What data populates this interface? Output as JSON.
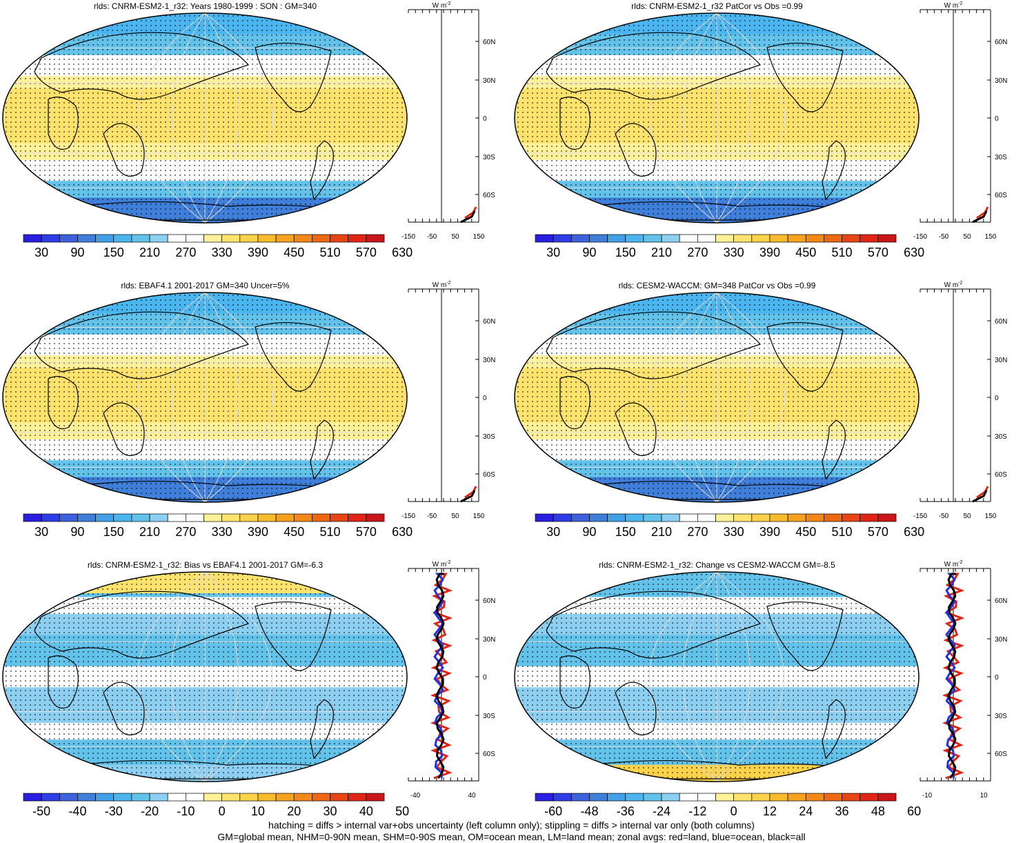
{
  "panels": [
    {
      "title": "rlds: CNRM-ESM2-1_r32: Years 1980-1999 : SON : GM=340",
      "colorbar_labels": [
        "30",
        "90",
        "150",
        "210",
        "270",
        "330",
        "390",
        "450",
        "510",
        "570",
        "630"
      ],
      "zonal_ticks": [
        "-150",
        "-50",
        "50",
        "150"
      ],
      "type": "mean"
    },
    {
      "title": "rlds: CNRM-ESM2-1_r32 PatCor vs Obs =0.99",
      "colorbar_labels": [
        "30",
        "90",
        "150",
        "210",
        "270",
        "330",
        "390",
        "450",
        "510",
        "570",
        "630"
      ],
      "zonal_ticks": [
        "-150",
        "-50",
        "50",
        "150"
      ],
      "type": "mean"
    },
    {
      "title": "rlds: EBAF4.1 2001-2017 GM=340 Uncer=5%",
      "colorbar_labels": [
        "30",
        "90",
        "150",
        "210",
        "270",
        "330",
        "390",
        "450",
        "510",
        "570",
        "630"
      ],
      "zonal_ticks": [
        "-150",
        "-50",
        "50",
        "150"
      ],
      "type": "mean"
    },
    {
      "title": "rlds: CESM2-WACCM: GM=348 PatCor vs Obs =0.99",
      "colorbar_labels": [
        "30",
        "90",
        "150",
        "210",
        "270",
        "330",
        "390",
        "450",
        "510",
        "570",
        "630"
      ],
      "zonal_ticks": [
        "-150",
        "-50",
        "50",
        "150"
      ],
      "type": "mean"
    },
    {
      "title": "rlds: CNRM-ESM2-1_r32: Bias vs EBAF4.1 2001-2017  GM=-6.3",
      "colorbar_labels": [
        "-50",
        "-40",
        "-30",
        "-20",
        "-10",
        "0",
        "10",
        "20",
        "30",
        "40",
        "50"
      ],
      "zonal_ticks": [
        "-40",
        "40"
      ],
      "type": "bias"
    },
    {
      "title": "rlds: CNRM-ESM2-1_r32: Change vs CESM2-WACCM GM=-8.5",
      "colorbar_labels": [
        "-60",
        "-48",
        "-36",
        "-24",
        "-12",
        "0",
        "12",
        "24",
        "36",
        "48",
        "60"
      ],
      "zonal_ticks": [
        "-10",
        "10"
      ],
      "type": "change"
    }
  ],
  "lat_labels": [
    "60N",
    "30N",
    "0",
    "30S",
    "60S"
  ],
  "units": "W m",
  "units_exp": "-2",
  "footer": {
    "line1": "hatching = diffs > internal var+obs uncertainty (left column only); stippling = diffs > internal var only (both columns)",
    "line2": "GM=global mean, NHM=0-90N mean, SHM=0-90S mean, OM=ocean mean, LM=land mean; zonal avgs: red=land, blue=ocean, black=all"
  },
  "colors": {
    "colorbar": [
      "#2a1ee0",
      "#2f3de6",
      "#3d60dc",
      "#3f7fd9",
      "#42a0e8",
      "#4ab5ee",
      "#62c2ea",
      "#8ccff0",
      "#ffffff",
      "#ffffff",
      "#fff09a",
      "#fde36e",
      "#fbd24a",
      "#f8bb2e",
      "#f5a21e",
      "#f28818",
      "#ee6814",
      "#e84515",
      "#e02418",
      "#c8161a"
    ],
    "land": "#e02418",
    "ocean": "#2030e0",
    "all": "#000000"
  }
}
